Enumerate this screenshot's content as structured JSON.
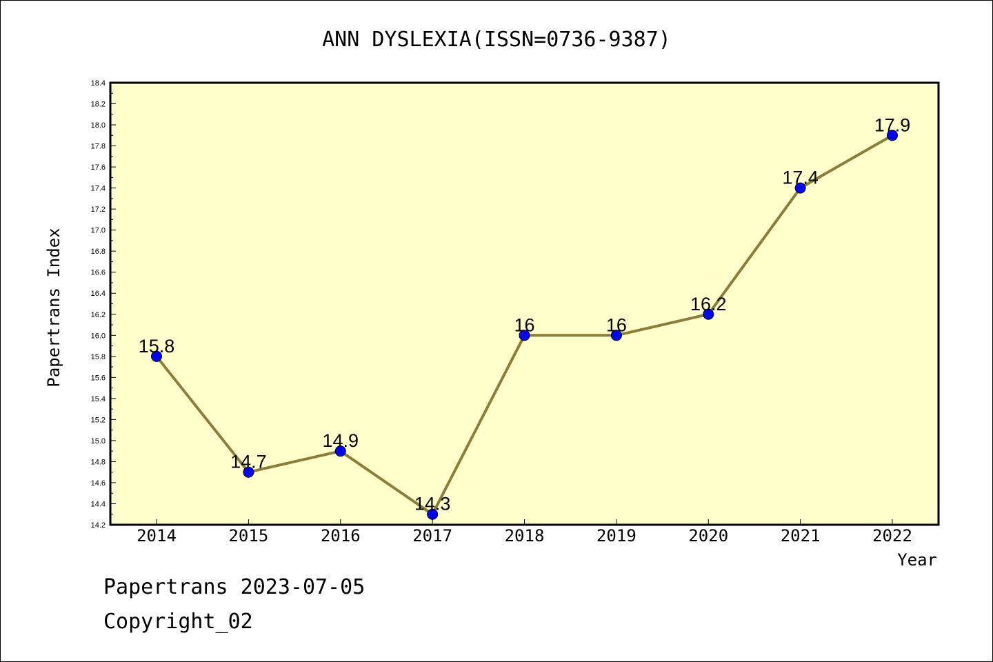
{
  "chart_data": {
    "type": "line",
    "title": "ANN DYSLEXIA(ISSN=0736-9387)",
    "xlabel": "Year",
    "ylabel": "Papertrans Index",
    "categories": [
      "2014",
      "2015",
      "2016",
      "2017",
      "2018",
      "2019",
      "2020",
      "2021",
      "2022"
    ],
    "values": [
      15.8,
      14.7,
      14.9,
      14.3,
      16.0,
      16.0,
      16.2,
      17.4,
      17.9
    ],
    "data_labels": [
      "15.8",
      "14.7",
      "14.9",
      "14.3",
      "16",
      "16",
      "16.2",
      "17.4",
      "17.9"
    ],
    "ylim": [
      14.2,
      18.4
    ],
    "y_ticks": [
      "14.2",
      "14.4",
      "14.6",
      "14.8",
      "15.0",
      "15.2",
      "15.4",
      "15.6",
      "15.8",
      "16.0",
      "16.2",
      "16.4",
      "16.6",
      "16.8",
      "17.0",
      "17.2",
      "17.4",
      "17.6",
      "17.8",
      "18.0",
      "18.2",
      "18.4"
    ],
    "grid": false,
    "legend": "none",
    "colors": {
      "plot_background": "#ffffcc",
      "line": "#8b7d3a",
      "marker": "#0000ff"
    }
  },
  "footer": {
    "date_line": "Papertrans 2023-07-05",
    "copyright": "Copyright_02"
  }
}
